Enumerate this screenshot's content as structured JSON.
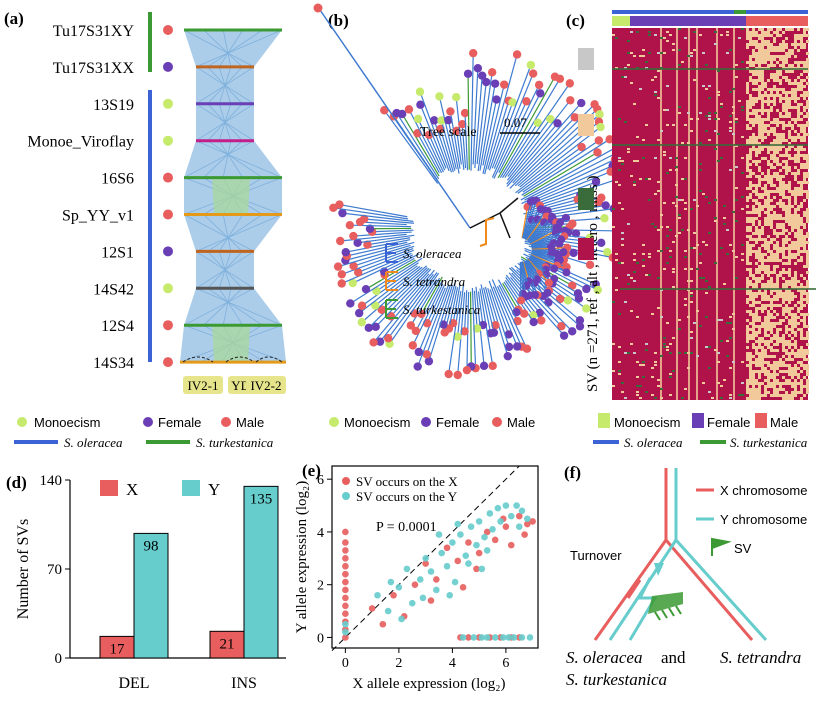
{
  "colors": {
    "monoecism": "#c6ea6b",
    "female": "#6a3fb6",
    "male": "#e85d5d",
    "oleracea": "#3b63d6",
    "turkestanica": "#3c9a34",
    "tetrandra": "#f08a1c",
    "synteny": "#9cc4e6",
    "ref": "#b0124a",
    "alt": "#3a6b3a",
    "hetero": "#f2c99a",
    "miss": "#c8c8c8",
    "x_bar": "#e85d5d",
    "y_bar": "#66cccc",
    "tree": "#3e7bd0"
  },
  "panel_a": {
    "label": "(a)",
    "genomes": [
      {
        "name": "Tu17S31XY",
        "sex": "male",
        "band": "#3c9a34"
      },
      {
        "name": "Tu17S31XX",
        "sex": "female",
        "band": "#c0651e"
      },
      {
        "name": "13S19",
        "sex": "monoecism",
        "band": "#6a3fb6"
      },
      {
        "name": "Monoe_Viroflay",
        "sex": "monoecism",
        "band": "#c21f8a"
      },
      {
        "name": "16S6",
        "sex": "male",
        "band": "#3c9a34"
      },
      {
        "name": "Sp_YY_v1",
        "sex": "male",
        "band": "#e39a1a"
      },
      {
        "name": "12S1",
        "sex": "female",
        "band": "#c0651e"
      },
      {
        "name": "14S42",
        "sex": "monoecism",
        "band": "#555555"
      },
      {
        "name": "12S4",
        "sex": "male",
        "band": "#3c9a34"
      },
      {
        "name": "14S34",
        "sex": "male",
        "band": "#e39a1a"
      }
    ],
    "regions": [
      "IV2-1",
      "YDR",
      "IV2-2"
    ],
    "legend": {
      "monoecism": "Monoecism",
      "female": "Female",
      "male": "Male",
      "oleracea": "S. oleracea",
      "turkestanica": "S. turkestanica"
    }
  },
  "panel_b": {
    "label": "(b)",
    "tree_scale_label": "Tree scale",
    "tree_scale_value": "0.07",
    "clades": [
      "S. oleracea",
      "S. tetrandra",
      "S. turkestanica"
    ],
    "legend": {
      "monoecism": "Monoecism",
      "female": "Female",
      "male": "Male"
    }
  },
  "panel_c": {
    "label": "(c)",
    "axis_label": "SV (n =271, ref , alt , hetero , miss )",
    "legend": {
      "monoecism": "Monoecism",
      "female": "Female",
      "male": "Male",
      "oleracea": "S. oleracea",
      "turkestanica": "S. turkestanica"
    }
  },
  "panel_d": {
    "label": "(d)",
    "chart_data": {
      "type": "bar",
      "categories": [
        "DEL",
        "INS"
      ],
      "series": [
        {
          "name": "X",
          "values": [
            17,
            21
          ]
        },
        {
          "name": "Y",
          "values": [
            98,
            135
          ]
        }
      ],
      "ylabel": "Number of SVs",
      "xlabel": "",
      "ylim": [
        0,
        140
      ],
      "yticks": [
        0,
        70,
        140
      ]
    }
  },
  "panel_e": {
    "label": "(e)",
    "chart_data": {
      "type": "scatter",
      "xlabel": "X allele expression (log₂)",
      "ylabel": "Y allele expression (log₂)",
      "xlim": [
        -0.5,
        7.2
      ],
      "ylim": [
        -0.4,
        6.5
      ],
      "xticks": [
        0,
        2,
        4,
        6
      ],
      "yticks": [
        0,
        2,
        4,
        6
      ],
      "annotation": "P = 0.0001",
      "series": [
        {
          "name": "SV occurs on the X",
          "points": [
            [
              0,
              4.0
            ],
            [
              0,
              3.6
            ],
            [
              0,
              3.3
            ],
            [
              0,
              3.0
            ],
            [
              0,
              2.7
            ],
            [
              0,
              2.4
            ],
            [
              0,
              2.1
            ],
            [
              0,
              1.8
            ],
            [
              0,
              1.5
            ],
            [
              0,
              1.2
            ],
            [
              0,
              0.9
            ],
            [
              0,
              0.6
            ],
            [
              0,
              0.3
            ],
            [
              0,
              0.0
            ],
            [
              4.6,
              0
            ],
            [
              5.0,
              0
            ],
            [
              5.4,
              0
            ],
            [
              5.8,
              0
            ],
            [
              6.2,
              0
            ],
            [
              6.5,
              0
            ],
            [
              4.3,
              0
            ],
            [
              1.0,
              1.1
            ],
            [
              1.8,
              1.6
            ],
            [
              2.6,
              2.0
            ],
            [
              3.0,
              2.8
            ],
            [
              3.4,
              2.2
            ],
            [
              3.8,
              3.4
            ],
            [
              4.2,
              2.9
            ],
            [
              4.6,
              3.6
            ],
            [
              5.0,
              3.2
            ],
            [
              5.3,
              4.0
            ],
            [
              5.6,
              3.7
            ],
            [
              6.0,
              4.2
            ],
            [
              6.2,
              3.5
            ],
            [
              6.5,
              4.6
            ],
            [
              6.8,
              4.3
            ],
            [
              7.0,
              4.4
            ],
            [
              6.7,
              3.9
            ],
            [
              5.9,
              4.5
            ],
            [
              4.9,
              2.6
            ],
            [
              2.2,
              0.8
            ],
            [
              3.2,
              1.4
            ],
            [
              1.4,
              0.5
            ],
            [
              4.4,
              1.9
            ]
          ]
        },
        {
          "name": "SV occurs on the Y",
          "points": [
            [
              4.8,
              0
            ],
            [
              5.1,
              0
            ],
            [
              5.3,
              0
            ],
            [
              5.6,
              0
            ],
            [
              5.9,
              0
            ],
            [
              6.1,
              0
            ],
            [
              6.3,
              0
            ],
            [
              6.6,
              0
            ],
            [
              6.9,
              0
            ],
            [
              4.4,
              0
            ],
            [
              1.2,
              1.6
            ],
            [
              1.6,
              1.0
            ],
            [
              2.0,
              1.9
            ],
            [
              2.3,
              2.6
            ],
            [
              2.5,
              1.3
            ],
            [
              2.8,
              2.2
            ],
            [
              3.0,
              3.0
            ],
            [
              3.2,
              2.5
            ],
            [
              3.4,
              1.8
            ],
            [
              3.6,
              3.2
            ],
            [
              3.8,
              2.7
            ],
            [
              4.0,
              3.6
            ],
            [
              4.1,
              2.1
            ],
            [
              4.3,
              3.9
            ],
            [
              4.5,
              3.1
            ],
            [
              4.7,
              4.2
            ],
            [
              4.9,
              3.5
            ],
            [
              5.0,
              4.4
            ],
            [
              5.2,
              3.8
            ],
            [
              5.4,
              4.7
            ],
            [
              5.5,
              4.1
            ],
            [
              5.7,
              4.9
            ],
            [
              5.8,
              4.4
            ],
            [
              6.0,
              5.0
            ],
            [
              6.2,
              4.6
            ],
            [
              6.4,
              5.0
            ],
            [
              6.6,
              4.8
            ],
            [
              6.8,
              4.5
            ],
            [
              6.5,
              4.2
            ],
            [
              5.3,
              3.3
            ],
            [
              4.6,
              2.8
            ],
            [
              3.9,
              1.6
            ],
            [
              2.9,
              1.5
            ],
            [
              2.1,
              0.7
            ],
            [
              1.7,
              2.1
            ],
            [
              3.5,
              3.9
            ],
            [
              4.2,
              4.3
            ],
            [
              5.1,
              2.6
            ],
            [
              0,
              0.5
            ],
            [
              0,
              0.2
            ]
          ]
        }
      ]
    }
  },
  "panel_f": {
    "label": "(f)",
    "legend_x": "X chromosome",
    "legend_y": "Y chromosome",
    "legend_sv": "SV",
    "turnover": "Turnover",
    "species_left_1": "S. oleracea",
    "species_left_and": "and",
    "species_left_2": "S. turkestanica",
    "species_right": "S. tetrandra"
  }
}
